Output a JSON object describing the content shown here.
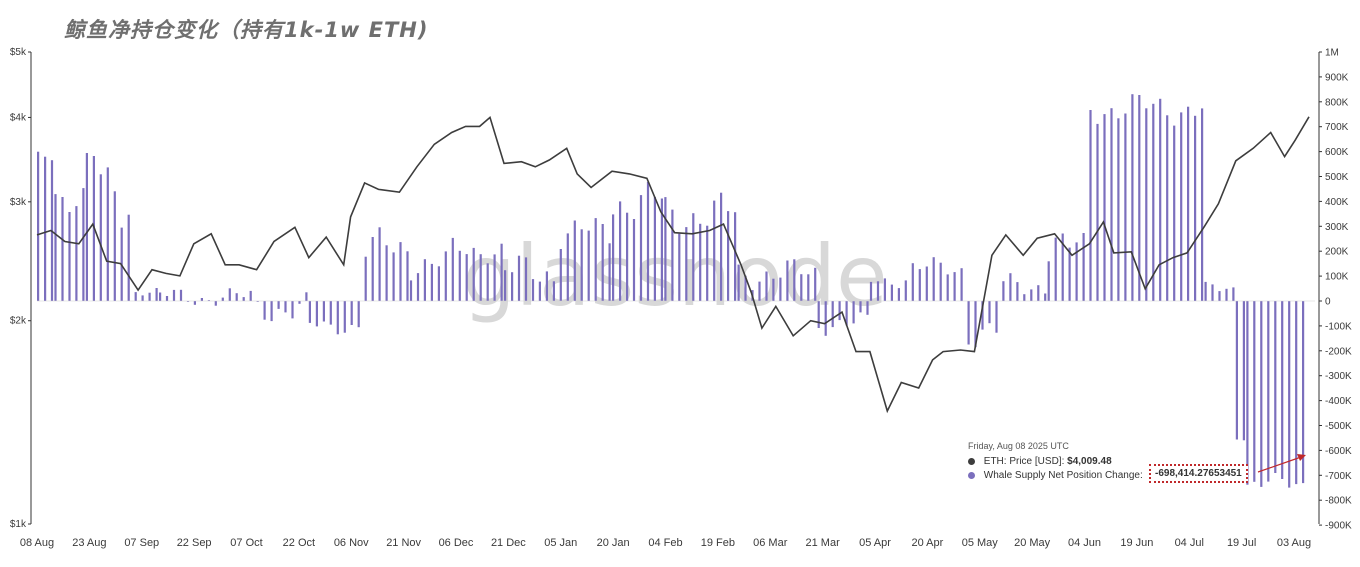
{
  "title": "鲸鱼净持仓变化（持有1k-1w ETH)",
  "watermark": "glassnode",
  "tooltip": {
    "date": "Friday, Aug 08 2025 UTC",
    "price_label": "ETH: Price [USD]:",
    "price_value": "$4,009.48",
    "whale_label": "Whale Supply Net Position Change:",
    "whale_value": "-698,414.27653451"
  },
  "colors": {
    "price_line": "#3d3d3d",
    "bars": "#7b6fbd",
    "bar_dark": "#5a4fa0",
    "annotation": "#c0292b",
    "axis": "#333333"
  },
  "chart_data": {
    "type": "line+bar",
    "title": "鲸鱼净持仓变化（持有1k-1w ETH)",
    "x_ticks": [
      "08 Aug",
      "23 Aug",
      "07 Sep",
      "22 Sep",
      "07 Oct",
      "22 Oct",
      "06 Nov",
      "21 Nov",
      "06 Dec",
      "21 Dec",
      "05 Jan",
      "20 Jan",
      "04 Feb",
      "19 Feb",
      "06 Mar",
      "21 Mar",
      "05 Apr",
      "20 Apr",
      "05 May",
      "20 May",
      "04 Jun",
      "19 Jun",
      "04 Jul",
      "19 Jul",
      "03 Aug"
    ],
    "y_left": {
      "scale": "log",
      "ticks": [
        "$1k",
        "$2k",
        "$3k",
        "$4k",
        "$5k"
      ],
      "tick_values": [
        1000,
        2000,
        3000,
        4000,
        5000
      ],
      "range": [
        1000,
        5000
      ]
    },
    "y_right": {
      "scale": "linear",
      "ticks": [
        "-900K",
        "-800K",
        "-700K",
        "-600K",
        "-500K",
        "-400K",
        "-300K",
        "-200K",
        "-100K",
        "0",
        "100K",
        "200K",
        "300K",
        "400K",
        "500K",
        "600K",
        "700K",
        "800K",
        "900K",
        "1M"
      ],
      "range": [
        -900000,
        1000000
      ]
    },
    "series": [
      {
        "name": "ETH: Price [USD]",
        "type": "line",
        "axis": "left",
        "points": [
          [
            "2024-08-08",
            2680
          ],
          [
            "2024-08-12",
            2720
          ],
          [
            "2024-08-16",
            2620
          ],
          [
            "2024-08-20",
            2600
          ],
          [
            "2024-08-24",
            2780
          ],
          [
            "2024-08-28",
            2450
          ],
          [
            "2024-09-01",
            2430
          ],
          [
            "2024-09-06",
            2220
          ],
          [
            "2024-09-10",
            2380
          ],
          [
            "2024-09-14",
            2350
          ],
          [
            "2024-09-18",
            2330
          ],
          [
            "2024-09-22",
            2600
          ],
          [
            "2024-09-27",
            2690
          ],
          [
            "2024-10-01",
            2420
          ],
          [
            "2024-10-05",
            2420
          ],
          [
            "2024-10-10",
            2380
          ],
          [
            "2024-10-15",
            2620
          ],
          [
            "2024-10-21",
            2750
          ],
          [
            "2024-10-25",
            2480
          ],
          [
            "2024-10-30",
            2660
          ],
          [
            "2024-11-04",
            2420
          ],
          [
            "2024-11-06",
            2850
          ],
          [
            "2024-11-10",
            3200
          ],
          [
            "2024-11-14",
            3130
          ],
          [
            "2024-11-20",
            3100
          ],
          [
            "2024-11-25",
            3380
          ],
          [
            "2024-11-30",
            3650
          ],
          [
            "2024-12-05",
            3800
          ],
          [
            "2024-12-09",
            3880
          ],
          [
            "2024-12-13",
            3880
          ],
          [
            "2024-12-16",
            4000
          ],
          [
            "2024-12-20",
            3420
          ],
          [
            "2024-12-25",
            3440
          ],
          [
            "2024-12-29",
            3380
          ],
          [
            "2025-01-02",
            3460
          ],
          [
            "2025-01-07",
            3600
          ],
          [
            "2025-01-10",
            3300
          ],
          [
            "2025-01-14",
            3150
          ],
          [
            "2025-01-20",
            3330
          ],
          [
            "2025-01-25",
            3300
          ],
          [
            "2025-01-30",
            3250
          ],
          [
            "2025-02-03",
            2900
          ],
          [
            "2025-02-07",
            2700
          ],
          [
            "2025-02-12",
            2690
          ],
          [
            "2025-02-17",
            2720
          ],
          [
            "2025-02-21",
            2780
          ],
          [
            "2025-02-26",
            2420
          ],
          [
            "2025-03-01",
            2200
          ],
          [
            "2025-03-04",
            1950
          ],
          [
            "2025-03-08",
            2100
          ],
          [
            "2025-03-13",
            1900
          ],
          [
            "2025-03-18",
            2000
          ],
          [
            "2025-03-22",
            1980
          ],
          [
            "2025-03-27",
            2060
          ],
          [
            "2025-03-31",
            1800
          ],
          [
            "2025-04-04",
            1800
          ],
          [
            "2025-04-09",
            1470
          ],
          [
            "2025-04-13",
            1620
          ],
          [
            "2025-04-18",
            1590
          ],
          [
            "2025-04-22",
            1750
          ],
          [
            "2025-04-25",
            1800
          ],
          [
            "2025-04-30",
            1810
          ],
          [
            "2025-05-04",
            1800
          ],
          [
            "2025-05-09",
            2500
          ],
          [
            "2025-05-13",
            2680
          ],
          [
            "2025-05-18",
            2500
          ],
          [
            "2025-05-22",
            2650
          ],
          [
            "2025-05-27",
            2690
          ],
          [
            "2025-06-01",
            2500
          ],
          [
            "2025-06-06",
            2600
          ],
          [
            "2025-06-10",
            2800
          ],
          [
            "2025-06-13",
            2520
          ],
          [
            "2025-06-18",
            2530
          ],
          [
            "2025-06-22",
            2230
          ],
          [
            "2025-06-26",
            2420
          ],
          [
            "2025-06-30",
            2480
          ],
          [
            "2025-07-04",
            2520
          ],
          [
            "2025-07-09",
            2760
          ],
          [
            "2025-07-13",
            2980
          ],
          [
            "2025-07-18",
            3450
          ],
          [
            "2025-07-23",
            3600
          ],
          [
            "2025-07-28",
            3800
          ],
          [
            "2025-08-01",
            3500
          ],
          [
            "2025-08-04",
            3700
          ],
          [
            "2025-08-08",
            4009
          ]
        ]
      },
      {
        "name": "Whale Supply Net Position Change",
        "type": "bar",
        "axis": "right",
        "segments": [
          [
            "2024-08-08",
            "2024-08-13",
            550000,
            600000
          ],
          [
            "2024-08-13",
            "2024-08-22",
            350000,
            500000
          ],
          [
            "2024-08-22",
            "2024-08-26",
            550000,
            620000
          ],
          [
            "2024-08-26",
            "2024-09-01",
            350000,
            550000
          ],
          [
            "2024-09-01",
            "2024-09-05",
            250000,
            450000
          ],
          [
            "2024-09-05",
            "2024-09-12",
            20000,
            60000
          ],
          [
            "2024-09-12",
            "2024-09-18",
            -20000,
            60000
          ],
          [
            "2024-09-18",
            "2024-10-10",
            -30000,
            60000
          ],
          [
            "2024-10-10",
            "2024-10-25",
            -100000,
            40000
          ],
          [
            "2024-10-25",
            "2024-11-10",
            -140000,
            -60000
          ],
          [
            "2024-11-10",
            "2024-11-23",
            120000,
            300000
          ],
          [
            "2024-11-23",
            "2024-12-05",
            80000,
            220000
          ],
          [
            "2024-12-05",
            "2024-12-20",
            150000,
            260000
          ],
          [
            "2024-12-20",
            "2025-01-05",
            30000,
            200000
          ],
          [
            "2025-01-05",
            "2025-01-20",
            200000,
            350000
          ],
          [
            "2025-01-20",
            "2025-02-04",
            300000,
            500000
          ],
          [
            "2025-02-04",
            "2025-02-25",
            250000,
            450000
          ],
          [
            "2025-02-25",
            "2025-03-20",
            40000,
            180000
          ],
          [
            "2025-03-20",
            "2025-04-04",
            -140000,
            -40000
          ],
          [
            "2025-04-04",
            "2025-04-16",
            50000,
            120000
          ],
          [
            "2025-04-16",
            "2025-05-02",
            80000,
            180000
          ],
          [
            "2025-05-02",
            "2025-05-12",
            -200000,
            -60000
          ],
          [
            "2025-05-12",
            "2025-05-25",
            10000,
            120000
          ],
          [
            "2025-05-25",
            "2025-06-06",
            120000,
            300000
          ],
          [
            "2025-06-06",
            "2025-07-09",
            700000,
            850000
          ],
          [
            "2025-07-09",
            "2025-07-18",
            10000,
            80000
          ],
          [
            "2025-07-18",
            "2025-07-21",
            -560000,
            -540000
          ],
          [
            "2025-07-21",
            "2025-08-08",
            -780000,
            -690000
          ]
        ]
      }
    ]
  }
}
